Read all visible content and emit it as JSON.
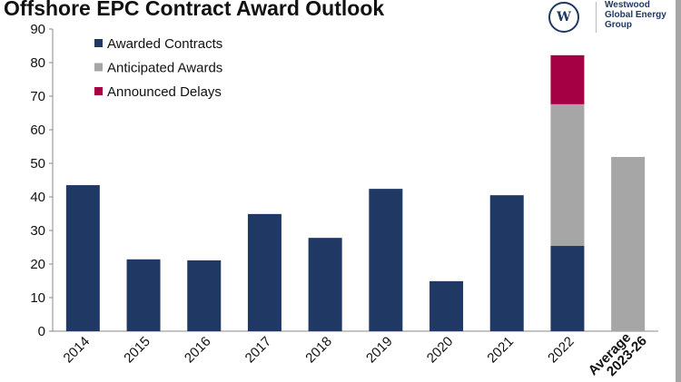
{
  "chart_data": {
    "type": "bar",
    "stacked": true,
    "title": "Offshore EPC Contract Award Outlook",
    "categories": [
      "2014",
      "2015",
      "2016",
      "2017",
      "2018",
      "2019",
      "2020",
      "2021",
      "2022",
      "Average 2023-26"
    ],
    "series": [
      {
        "name": "Awarded Contracts",
        "color": "#1f3864",
        "values": [
          43.5,
          21.4,
          21.1,
          34.9,
          27.8,
          42.4,
          14.9,
          40.5,
          25.4,
          0
        ]
      },
      {
        "name": "Anticipated Awards",
        "color": "#a6a6a6",
        "values": [
          0,
          0,
          0,
          0,
          0,
          0,
          0,
          0,
          42.2,
          51.9
        ]
      },
      {
        "name": "Announced Delays",
        "color": "#a50044",
        "values": [
          0,
          0,
          0,
          0,
          0,
          0,
          0,
          0,
          14.6,
          0
        ]
      }
    ],
    "ylim": [
      0,
      90
    ],
    "yticks": [
      0,
      10,
      20,
      30,
      40,
      50,
      60,
      70,
      80,
      90
    ],
    "legend": "top-left",
    "grid": false
  },
  "logo": {
    "mark": "W",
    "text": [
      "Westwood",
      "Global Energy",
      "Group"
    ]
  }
}
